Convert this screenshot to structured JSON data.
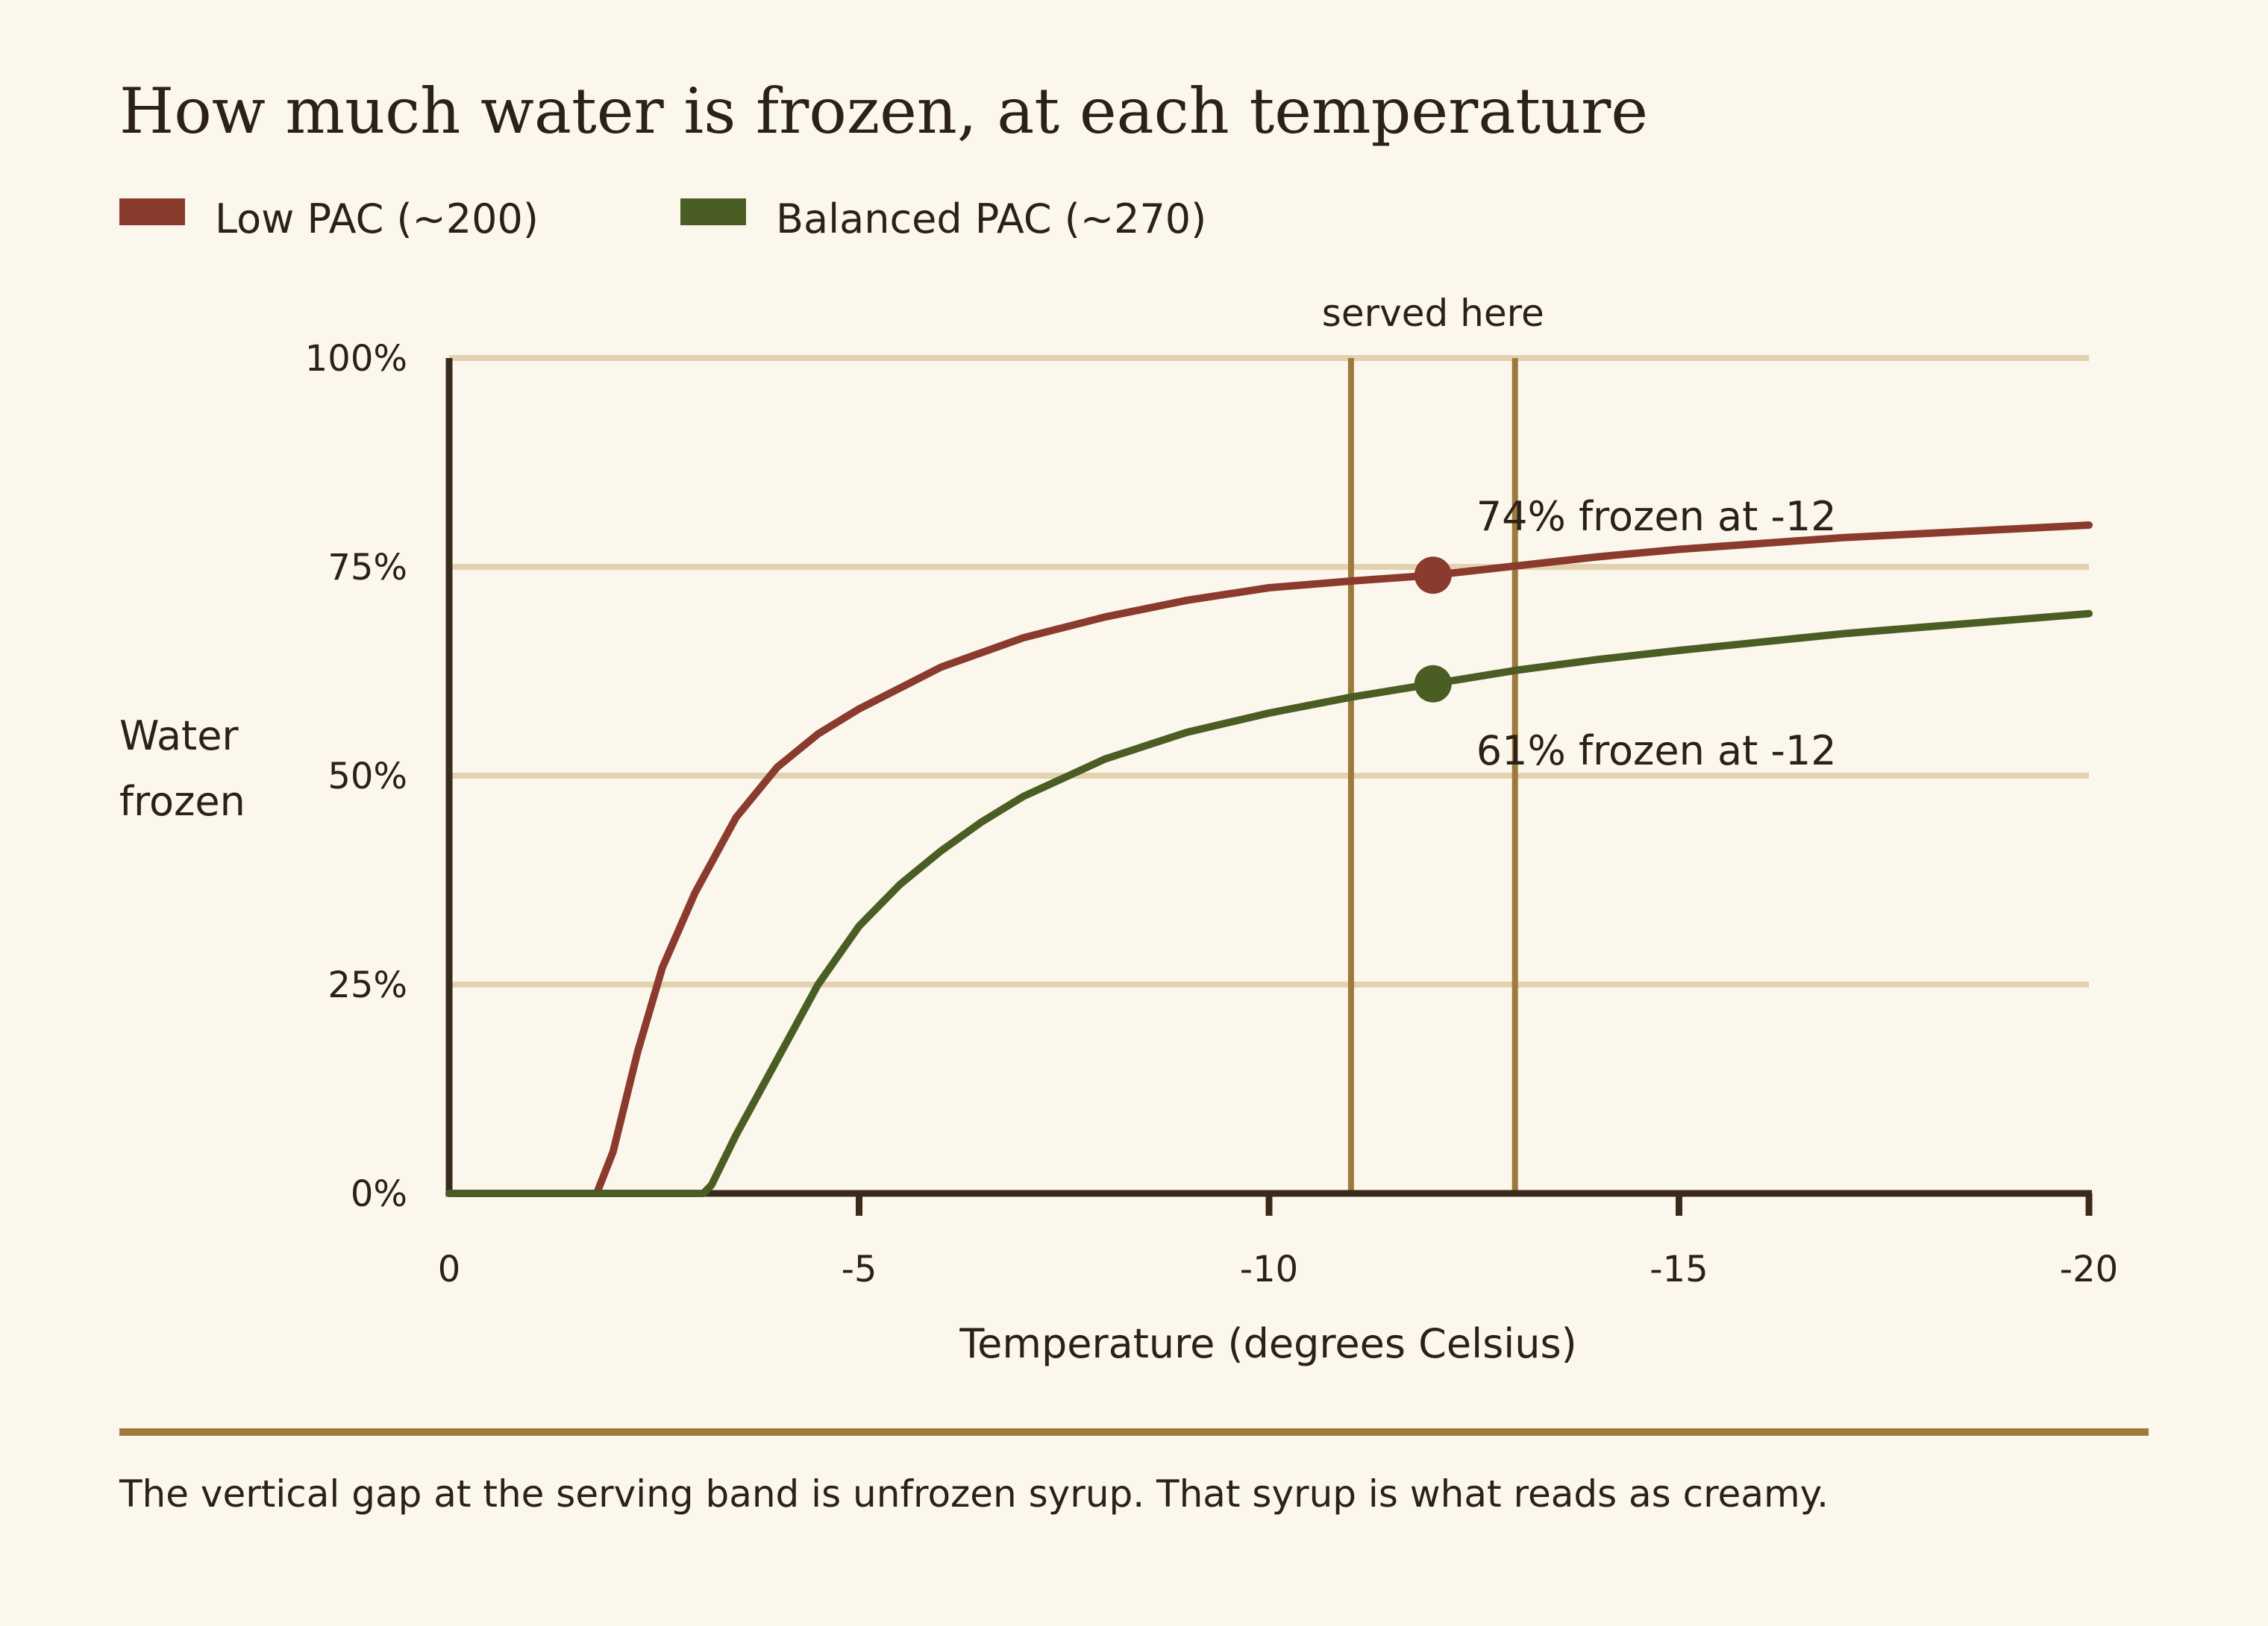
{
  "chart_data": {
    "type": "line",
    "title": "How much water is frozen, at each temperature",
    "xlabel": "Temperature (degrees Celsius)",
    "ylabel": [
      "Water",
      "frozen"
    ],
    "xlim": [
      0,
      -20
    ],
    "ylim": [
      0,
      100
    ],
    "x_ticks": [
      0,
      -5,
      -10,
      -15,
      -20
    ],
    "x_tick_labels": [
      "0",
      "-5",
      "-10",
      "-15",
      "-20"
    ],
    "y_ticks": [
      0,
      25,
      50,
      75,
      100
    ],
    "y_tick_labels": [
      "0%",
      "25%",
      "50%",
      "75%",
      "100%"
    ],
    "grid": "horizontal",
    "legend": "top-left",
    "series": [
      {
        "name": "Low PAC (~200)",
        "color": "#8b3a2e",
        "points": [
          [
            0,
            0
          ],
          [
            -1.8,
            0
          ],
          [
            -2,
            5
          ],
          [
            -2.3,
            17
          ],
          [
            -2.6,
            27
          ],
          [
            -3,
            36
          ],
          [
            -3.5,
            45
          ],
          [
            -4,
            51
          ],
          [
            -4.5,
            55
          ],
          [
            -5,
            58
          ],
          [
            -6,
            63
          ],
          [
            -7,
            66.5
          ],
          [
            -8,
            69
          ],
          [
            -9,
            71
          ],
          [
            -10,
            72.5
          ],
          [
            -11,
            73.3
          ],
          [
            -12,
            74
          ],
          [
            -13,
            75.1
          ],
          [
            -14,
            76.2
          ],
          [
            -15,
            77.1
          ],
          [
            -16,
            77.8
          ],
          [
            -17,
            78.5
          ],
          [
            -18,
            79
          ],
          [
            -19,
            79.5
          ],
          [
            -20,
            80
          ]
        ]
      },
      {
        "name": "Balanced PAC (~270)",
        "color": "#4a5e24",
        "points": [
          [
            0,
            0
          ],
          [
            -3.1,
            0
          ],
          [
            -3.2,
            1
          ],
          [
            -3.5,
            7
          ],
          [
            -4,
            16
          ],
          [
            -4.5,
            25
          ],
          [
            -5,
            32
          ],
          [
            -5.5,
            37
          ],
          [
            -6,
            41
          ],
          [
            -6.5,
            44.5
          ],
          [
            -7,
            47.5
          ],
          [
            -8,
            52
          ],
          [
            -9,
            55.2
          ],
          [
            -10,
            57.5
          ],
          [
            -11,
            59.4
          ],
          [
            -12,
            61
          ],
          [
            -13,
            62.6
          ],
          [
            -14,
            63.9
          ],
          [
            -15,
            65
          ],
          [
            -16,
            66
          ],
          [
            -17,
            67
          ],
          [
            -18,
            67.8
          ],
          [
            -19,
            68.6
          ],
          [
            -20,
            69.4
          ]
        ]
      }
    ],
    "serving_band": {
      "from": -11,
      "to": -13,
      "label": "served here",
      "color": "#9c7a3c"
    },
    "markers": [
      {
        "series": 0,
        "x": -12,
        "y": 74,
        "label": "74% frozen at -12"
      },
      {
        "series": 1,
        "x": -12,
        "y": 61,
        "label": "61% frozen at -12"
      }
    ],
    "caption": "The vertical gap at the serving band is unfrozen syrup. That syrup is what reads as creamy."
  }
}
